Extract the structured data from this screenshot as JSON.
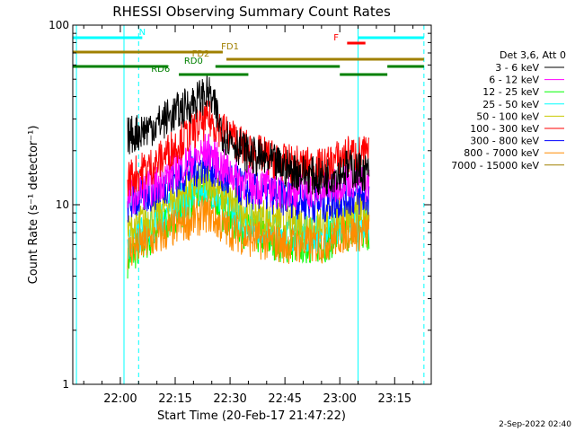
{
  "chart_data": {
    "type": "line",
    "title": "RHESSI Observing Summary Count Rates",
    "xlabel": "Start Time (20-Feb-17 21:47:22)",
    "ylabel": "Count Rate (s⁻¹ detector⁻¹)",
    "yscale": "log",
    "ylim": [
      1,
      100
    ],
    "xlim_minutes": [
      -13,
      85
    ],
    "x_ticks": [
      "22:00",
      "22:15",
      "22:30",
      "22:45",
      "23:00",
      "23:15"
    ],
    "y_ticks": [
      "1",
      "10",
      "100"
    ],
    "legend_header": "Det 3,6, Att 0",
    "legend_position": "right",
    "timestamp": "2-Sep-2022 02:40",
    "data_start": "22:02",
    "data_end": "23:08",
    "series": [
      {
        "name": "3 - 6 keV",
        "color": "#000000",
        "x": [
          "22:02",
          "22:10",
          "22:18",
          "22:24",
          "22:28",
          "22:35",
          "22:45",
          "22:55",
          "23:02",
          "23:08"
        ],
        "values": [
          24,
          28,
          35,
          42,
          25,
          19,
          16,
          14,
          16,
          15
        ]
      },
      {
        "name": "6 - 12 keV",
        "color": "#ff00ff",
        "x": [
          "22:02",
          "22:10",
          "22:18",
          "22:24",
          "22:28",
          "22:35",
          "22:45",
          "22:55",
          "23:02",
          "23:08"
        ],
        "values": [
          11,
          13,
          17,
          20,
          16,
          13,
          12,
          12,
          14,
          13
        ]
      },
      {
        "name": "12 - 25 keV",
        "color": "#00ff00",
        "x": [
          "22:02",
          "22:10",
          "22:18",
          "22:24",
          "22:28",
          "22:35",
          "22:45",
          "22:55",
          "23:02",
          "23:08"
        ],
        "values": [
          5,
          7,
          10,
          12,
          9,
          7,
          6,
          6,
          7,
          7
        ]
      },
      {
        "name": "25 - 50 keV",
        "color": "#00ffff",
        "x": [
          "22:02",
          "22:10",
          "22:18",
          "22:24",
          "22:28",
          "22:35",
          "22:45",
          "22:55",
          "23:02",
          "23:08"
        ],
        "values": [
          6,
          8,
          11,
          13,
          10,
          8,
          7,
          7,
          8,
          8
        ]
      },
      {
        "name": "50 - 100 keV",
        "color": "#c8c800",
        "x": [
          "22:02",
          "22:10",
          "22:18",
          "22:24",
          "22:28",
          "22:35",
          "22:45",
          "22:55",
          "23:02",
          "23:08"
        ],
        "values": [
          7,
          9,
          12,
          14,
          11,
          9,
          8,
          8,
          9,
          9
        ]
      },
      {
        "name": "100 - 300 keV",
        "color": "#ff0000",
        "x": [
          "22:02",
          "22:10",
          "22:18",
          "22:24",
          "22:28",
          "22:35",
          "22:45",
          "22:55",
          "23:02",
          "23:08"
        ],
        "values": [
          14,
          17,
          24,
          30,
          26,
          20,
          17,
          16,
          19,
          19
        ]
      },
      {
        "name": "300 - 800 keV",
        "color": "#0000ff",
        "x": [
          "22:02",
          "22:10",
          "22:18",
          "22:24",
          "22:28",
          "22:35",
          "22:45",
          "22:55",
          "23:02",
          "23:08"
        ],
        "values": [
          10,
          12,
          15,
          17,
          14,
          12,
          11,
          10,
          11,
          11
        ]
      },
      {
        "name": "800 - 7000 keV",
        "color": "#ff8c00",
        "x": [
          "22:02",
          "22:10",
          "22:18",
          "22:24",
          "22:28",
          "22:35",
          "22:45",
          "22:55",
          "23:02",
          "23:08"
        ],
        "values": [
          5.5,
          6.5,
          8,
          9,
          7.5,
          6.5,
          6,
          6,
          7,
          7
        ]
      },
      {
        "name": "7000 - 15000 keV",
        "color": "#a08000",
        "x": [],
        "values": []
      }
    ],
    "flag_bars": [
      {
        "label": "N",
        "color": "#00ffff",
        "label_at": "22:06",
        "segments": [
          [
            "21:47",
            "22:06"
          ],
          [
            "23:05",
            "23:23"
          ]
        ]
      },
      {
        "label": "FD1",
        "color": "#a08000",
        "label_at": "22:30",
        "segments": [
          [
            "21:47",
            "22:28"
          ]
        ]
      },
      {
        "label": "FD2",
        "color": "#a08000",
        "label_at": "22:22",
        "segments": [
          [
            "22:29",
            "23:23"
          ]
        ]
      },
      {
        "label": "RD0",
        "color": "#008000",
        "label_at": "22:20",
        "segments": [
          [
            "21:47",
            "22:13"
          ],
          [
            "22:26",
            "23:00"
          ],
          [
            "23:13",
            "23:23"
          ]
        ]
      },
      {
        "label": "RD6",
        "color": "#008000",
        "label_at": "22:11",
        "segments": [
          [
            "22:16",
            "22:35"
          ],
          [
            "23:00",
            "23:13"
          ]
        ]
      },
      {
        "label": "F",
        "color": "#ff0000",
        "label_at": "22:59",
        "segments": [
          [
            "23:02",
            "23:07"
          ]
        ]
      }
    ],
    "vlines": [
      {
        "time": "21:48",
        "color": "#00ffff",
        "style": "solid"
      },
      {
        "time": "22:05",
        "color": "#00ffff",
        "style": "dashed"
      },
      {
        "time": "22:01",
        "color": "#00ffff",
        "style": "solid"
      },
      {
        "time": "23:05",
        "color": "#00ffff",
        "style": "solid"
      },
      {
        "time": "23:23",
        "color": "#00ffff",
        "style": "dashed"
      }
    ]
  }
}
